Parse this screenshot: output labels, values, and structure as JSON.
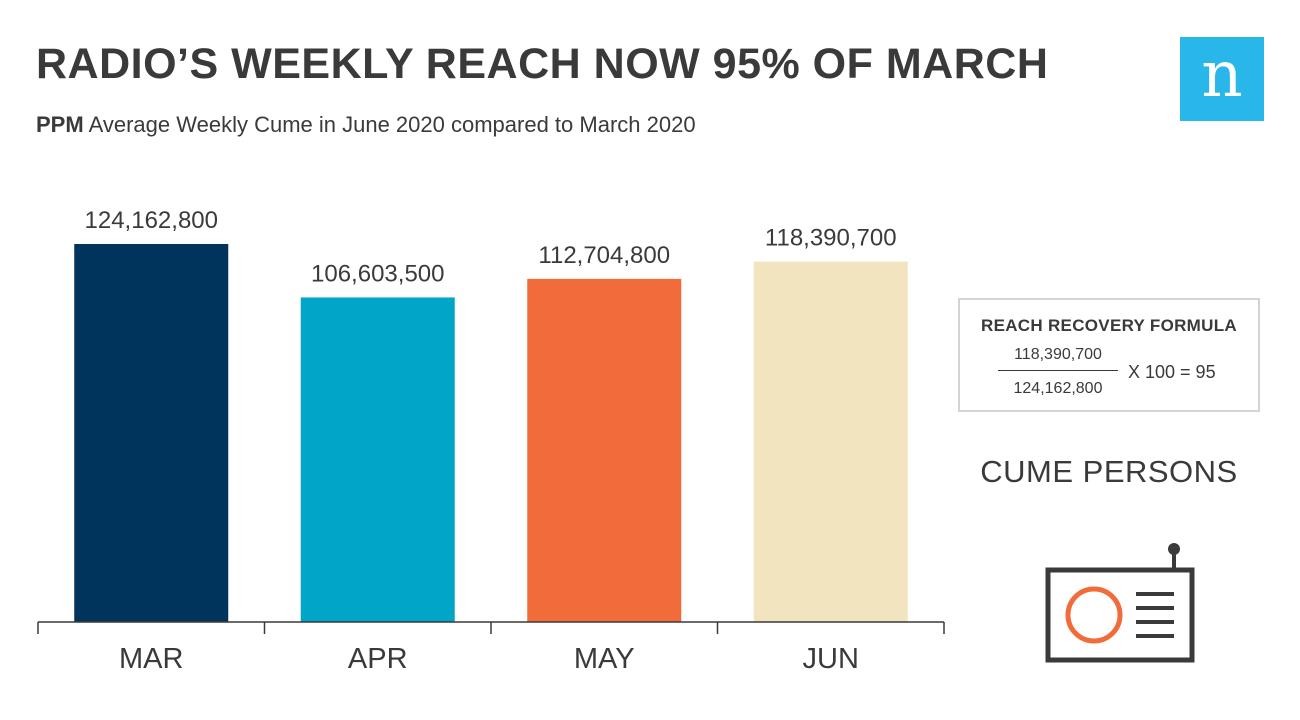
{
  "header": {
    "title": "RADIO’S WEEKLY REACH NOW 95% OF MARCH",
    "subtitle_strong": "PPM",
    "subtitle_rest": " Average Weekly Cume in June 2020 compared to March 2020",
    "logo_letter": "n"
  },
  "formula": {
    "title": "REACH RECOVERY FORMULA",
    "numerator": "118,390,700",
    "denominator": "124,162,800",
    "operation": "X 100 = 95"
  },
  "side_label": "CUME PERSONS",
  "icons": {
    "logo": "nielsen-n-logo",
    "radio": "radio-icon"
  },
  "colors": {
    "logo_bg": "#29b6e8",
    "mar": "#00345c",
    "apr": "#00a5c8",
    "may": "#f26b3a",
    "jun": "#f1e4bf",
    "icon_accent": "#f26b3a",
    "icon_stroke": "#3a3a3a"
  },
  "chart_data": {
    "type": "bar",
    "categories": [
      "MAR",
      "APR",
      "MAY",
      "JUN"
    ],
    "values": [
      124162800,
      106603500,
      112704800,
      118390700
    ],
    "value_labels": [
      "124,162,800",
      "106,603,500",
      "112,704,800",
      "118,390,700"
    ],
    "title": "RADIO’S WEEKLY REACH NOW 95% OF MARCH",
    "xlabel": "",
    "ylabel": "",
    "grid": false,
    "legend": "none"
  }
}
